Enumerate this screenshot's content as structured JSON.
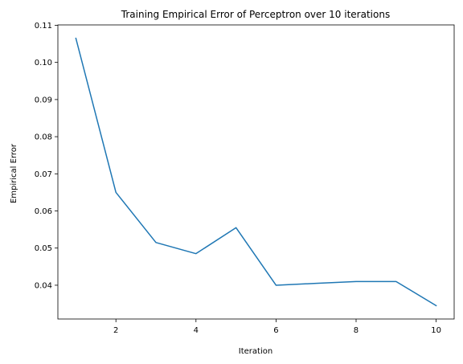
{
  "chart_data": {
    "type": "line",
    "title": "Training Empirical Error of Perceptron over 10 iterations",
    "xlabel": "Iteration",
    "ylabel": "Empirical Error",
    "xlim": [
      0.55,
      10.45
    ],
    "ylim": [
      0.0309,
      0.1101
    ],
    "grid": false,
    "x_ticks": [
      2,
      4,
      6,
      8,
      10
    ],
    "x_tick_labels": [
      "2",
      "4",
      "6",
      "8",
      "10"
    ],
    "y_ticks": [
      0.04,
      0.05,
      0.06,
      0.07,
      0.08,
      0.09,
      0.1,
      0.11
    ],
    "y_tick_labels": [
      "0.04",
      "0.05",
      "0.06",
      "0.07",
      "0.08",
      "0.09",
      "0.10",
      "0.11"
    ],
    "series": [
      {
        "color": "#1f77b4",
        "x": [
          1,
          2,
          3,
          4,
          5,
          6,
          7,
          8,
          9,
          10
        ],
        "y": [
          0.1065,
          0.065,
          0.0515,
          0.0485,
          0.0555,
          0.04,
          0.0405,
          0.041,
          0.041,
          0.0345
        ]
      }
    ]
  }
}
